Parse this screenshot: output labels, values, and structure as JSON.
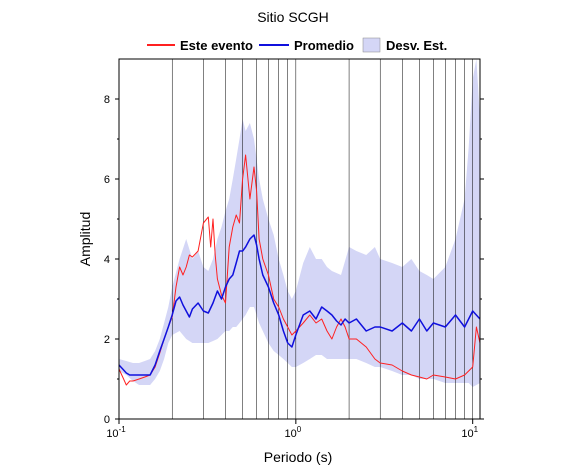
{
  "chart_data": {
    "type": "line",
    "title": "Sitio SCGH",
    "xlabel": "Periodo (s)",
    "ylabel": "Amplitud",
    "xscale": "log",
    "xlim": [
      0.1,
      11
    ],
    "ylim": [
      0,
      9
    ],
    "grid": "vertical",
    "legend": {
      "position": "top",
      "entries": [
        "Este evento",
        "Promedio",
        "Desv. Est."
      ]
    },
    "x_ticks": [
      {
        "value": 0.1,
        "base": "10",
        "exp": "-1"
      },
      {
        "value": 1,
        "base": "10",
        "exp": "0"
      },
      {
        "value": 10,
        "base": "10",
        "exp": "1"
      }
    ],
    "y_ticks": [
      0,
      2,
      4,
      6,
      8
    ],
    "colors": {
      "event": "#ff2020",
      "mean": "#1010dd",
      "std_band": "#d4d6f6",
      "grid": "#000000"
    },
    "series": [
      {
        "name": "Este evento",
        "x": [
          0.1,
          0.105,
          0.11,
          0.115,
          0.12,
          0.13,
          0.14,
          0.15,
          0.16,
          0.17,
          0.18,
          0.19,
          0.2,
          0.21,
          0.22,
          0.23,
          0.24,
          0.25,
          0.26,
          0.28,
          0.3,
          0.32,
          0.33,
          0.34,
          0.35,
          0.36,
          0.38,
          0.4,
          0.42,
          0.44,
          0.46,
          0.48,
          0.5,
          0.52,
          0.55,
          0.58,
          0.6,
          0.62,
          0.65,
          0.7,
          0.75,
          0.8,
          0.85,
          0.9,
          0.95,
          1.0,
          1.1,
          1.2,
          1.3,
          1.4,
          1.5,
          1.6,
          1.7,
          1.8,
          1.9,
          2.0,
          2.2,
          2.5,
          2.8,
          3.0,
          3.5,
          4.0,
          4.5,
          5.0,
          5.5,
          6.0,
          7.0,
          8.0,
          9.0,
          10.0,
          10.5,
          11.0
        ],
        "y": [
          1.25,
          1.05,
          0.85,
          0.95,
          0.95,
          1.0,
          1.05,
          1.1,
          1.3,
          1.65,
          2.0,
          2.3,
          2.55,
          3.3,
          3.8,
          3.6,
          3.8,
          4.1,
          4.05,
          4.2,
          4.9,
          5.05,
          4.3,
          5.0,
          4.1,
          3.5,
          3.1,
          2.9,
          4.3,
          4.8,
          5.1,
          4.9,
          6.0,
          6.6,
          5.5,
          6.3,
          5.7,
          4.5,
          4.0,
          3.6,
          3.0,
          2.8,
          2.5,
          2.3,
          2.1,
          2.2,
          2.4,
          2.6,
          2.4,
          2.5,
          2.2,
          2.0,
          2.3,
          2.5,
          2.3,
          2.0,
          2.0,
          1.8,
          1.5,
          1.4,
          1.35,
          1.2,
          1.1,
          1.05,
          1.0,
          1.1,
          1.05,
          1.0,
          1.1,
          1.3,
          2.3,
          1.9
        ]
      },
      {
        "name": "Promedio",
        "x": [
          0.1,
          0.105,
          0.11,
          0.115,
          0.12,
          0.13,
          0.14,
          0.15,
          0.16,
          0.17,
          0.18,
          0.19,
          0.2,
          0.21,
          0.22,
          0.23,
          0.24,
          0.25,
          0.26,
          0.28,
          0.3,
          0.32,
          0.34,
          0.36,
          0.38,
          0.4,
          0.42,
          0.44,
          0.46,
          0.48,
          0.5,
          0.52,
          0.55,
          0.58,
          0.6,
          0.62,
          0.65,
          0.7,
          0.75,
          0.8,
          0.85,
          0.9,
          0.95,
          1.0,
          1.1,
          1.2,
          1.3,
          1.4,
          1.5,
          1.6,
          1.7,
          1.8,
          1.9,
          2.0,
          2.2,
          2.5,
          2.8,
          3.0,
          3.5,
          4.0,
          4.5,
          5.0,
          5.5,
          6.0,
          7.0,
          8.0,
          9.0,
          10.0,
          11.0
        ],
        "y": [
          1.35,
          1.25,
          1.15,
          1.1,
          1.1,
          1.1,
          1.1,
          1.1,
          1.35,
          1.7,
          2.0,
          2.3,
          2.6,
          2.95,
          3.05,
          2.85,
          2.7,
          2.55,
          2.75,
          2.9,
          2.7,
          2.65,
          2.9,
          3.2,
          3.0,
          3.3,
          3.5,
          3.6,
          3.9,
          4.2,
          4.2,
          4.3,
          4.5,
          4.6,
          4.35,
          4.0,
          3.6,
          3.3,
          2.9,
          2.6,
          2.2,
          1.9,
          1.8,
          2.1,
          2.6,
          2.7,
          2.5,
          2.8,
          2.7,
          2.6,
          2.45,
          2.35,
          2.5,
          2.4,
          2.5,
          2.2,
          2.3,
          2.3,
          2.2,
          2.4,
          2.2,
          2.5,
          2.2,
          2.4,
          2.3,
          2.6,
          2.3,
          2.7,
          2.5
        ]
      }
    ],
    "std_band": {
      "name": "Desv. Est.",
      "x": [
        0.1,
        0.11,
        0.12,
        0.13,
        0.14,
        0.15,
        0.16,
        0.17,
        0.18,
        0.19,
        0.2,
        0.22,
        0.24,
        0.26,
        0.28,
        0.3,
        0.32,
        0.34,
        0.36,
        0.38,
        0.4,
        0.42,
        0.44,
        0.46,
        0.48,
        0.5,
        0.52,
        0.55,
        0.58,
        0.6,
        0.62,
        0.65,
        0.7,
        0.75,
        0.8,
        0.85,
        0.9,
        0.95,
        1.0,
        1.1,
        1.2,
        1.3,
        1.4,
        1.5,
        1.6,
        1.8,
        2.0,
        2.2,
        2.5,
        2.8,
        3.0,
        3.5,
        4.0,
        4.5,
        5.0,
        5.5,
        6.0,
        7.0,
        8.0,
        9.0,
        9.5,
        10.0,
        10.5,
        11.0
      ],
      "upper": [
        1.5,
        1.45,
        1.4,
        1.4,
        1.45,
        1.5,
        1.7,
        2.0,
        2.4,
        2.8,
        3.3,
        4.0,
        4.5,
        4.0,
        4.2,
        3.8,
        3.7,
        4.0,
        4.5,
        4.8,
        5.2,
        5.5,
        6.0,
        6.5,
        7.0,
        7.5,
        7.2,
        7.4,
        7.0,
        6.5,
        6.0,
        5.5,
        5.0,
        4.6,
        4.0,
        3.6,
        3.2,
        3.0,
        3.2,
        3.9,
        4.3,
        4.0,
        4.0,
        3.8,
        3.7,
        3.6,
        4.3,
        4.2,
        4.1,
        4.3,
        4.0,
        3.9,
        3.8,
        4.0,
        3.7,
        3.6,
        3.5,
        3.8,
        4.5,
        5.5,
        6.8,
        8.5,
        9.0,
        7.5
      ],
      "lower": [
        1.2,
        1.1,
        0.95,
        0.85,
        0.85,
        0.85,
        1.0,
        1.2,
        1.5,
        1.9,
        2.1,
        2.2,
        2.0,
        1.9,
        1.9,
        1.9,
        1.9,
        1.95,
        2.0,
        2.1,
        2.2,
        2.2,
        2.3,
        2.3,
        2.4,
        2.5,
        2.6,
        2.8,
        2.8,
        2.6,
        2.4,
        2.2,
        1.9,
        1.7,
        1.6,
        1.5,
        1.4,
        1.3,
        1.3,
        1.4,
        1.5,
        1.6,
        1.6,
        1.5,
        1.5,
        1.5,
        1.5,
        1.5,
        1.4,
        1.3,
        1.3,
        1.2,
        1.1,
        1.1,
        1.0,
        1.0,
        1.0,
        0.9,
        0.9,
        0.9,
        0.9,
        0.8,
        0.85,
        0.9
      ]
    }
  }
}
